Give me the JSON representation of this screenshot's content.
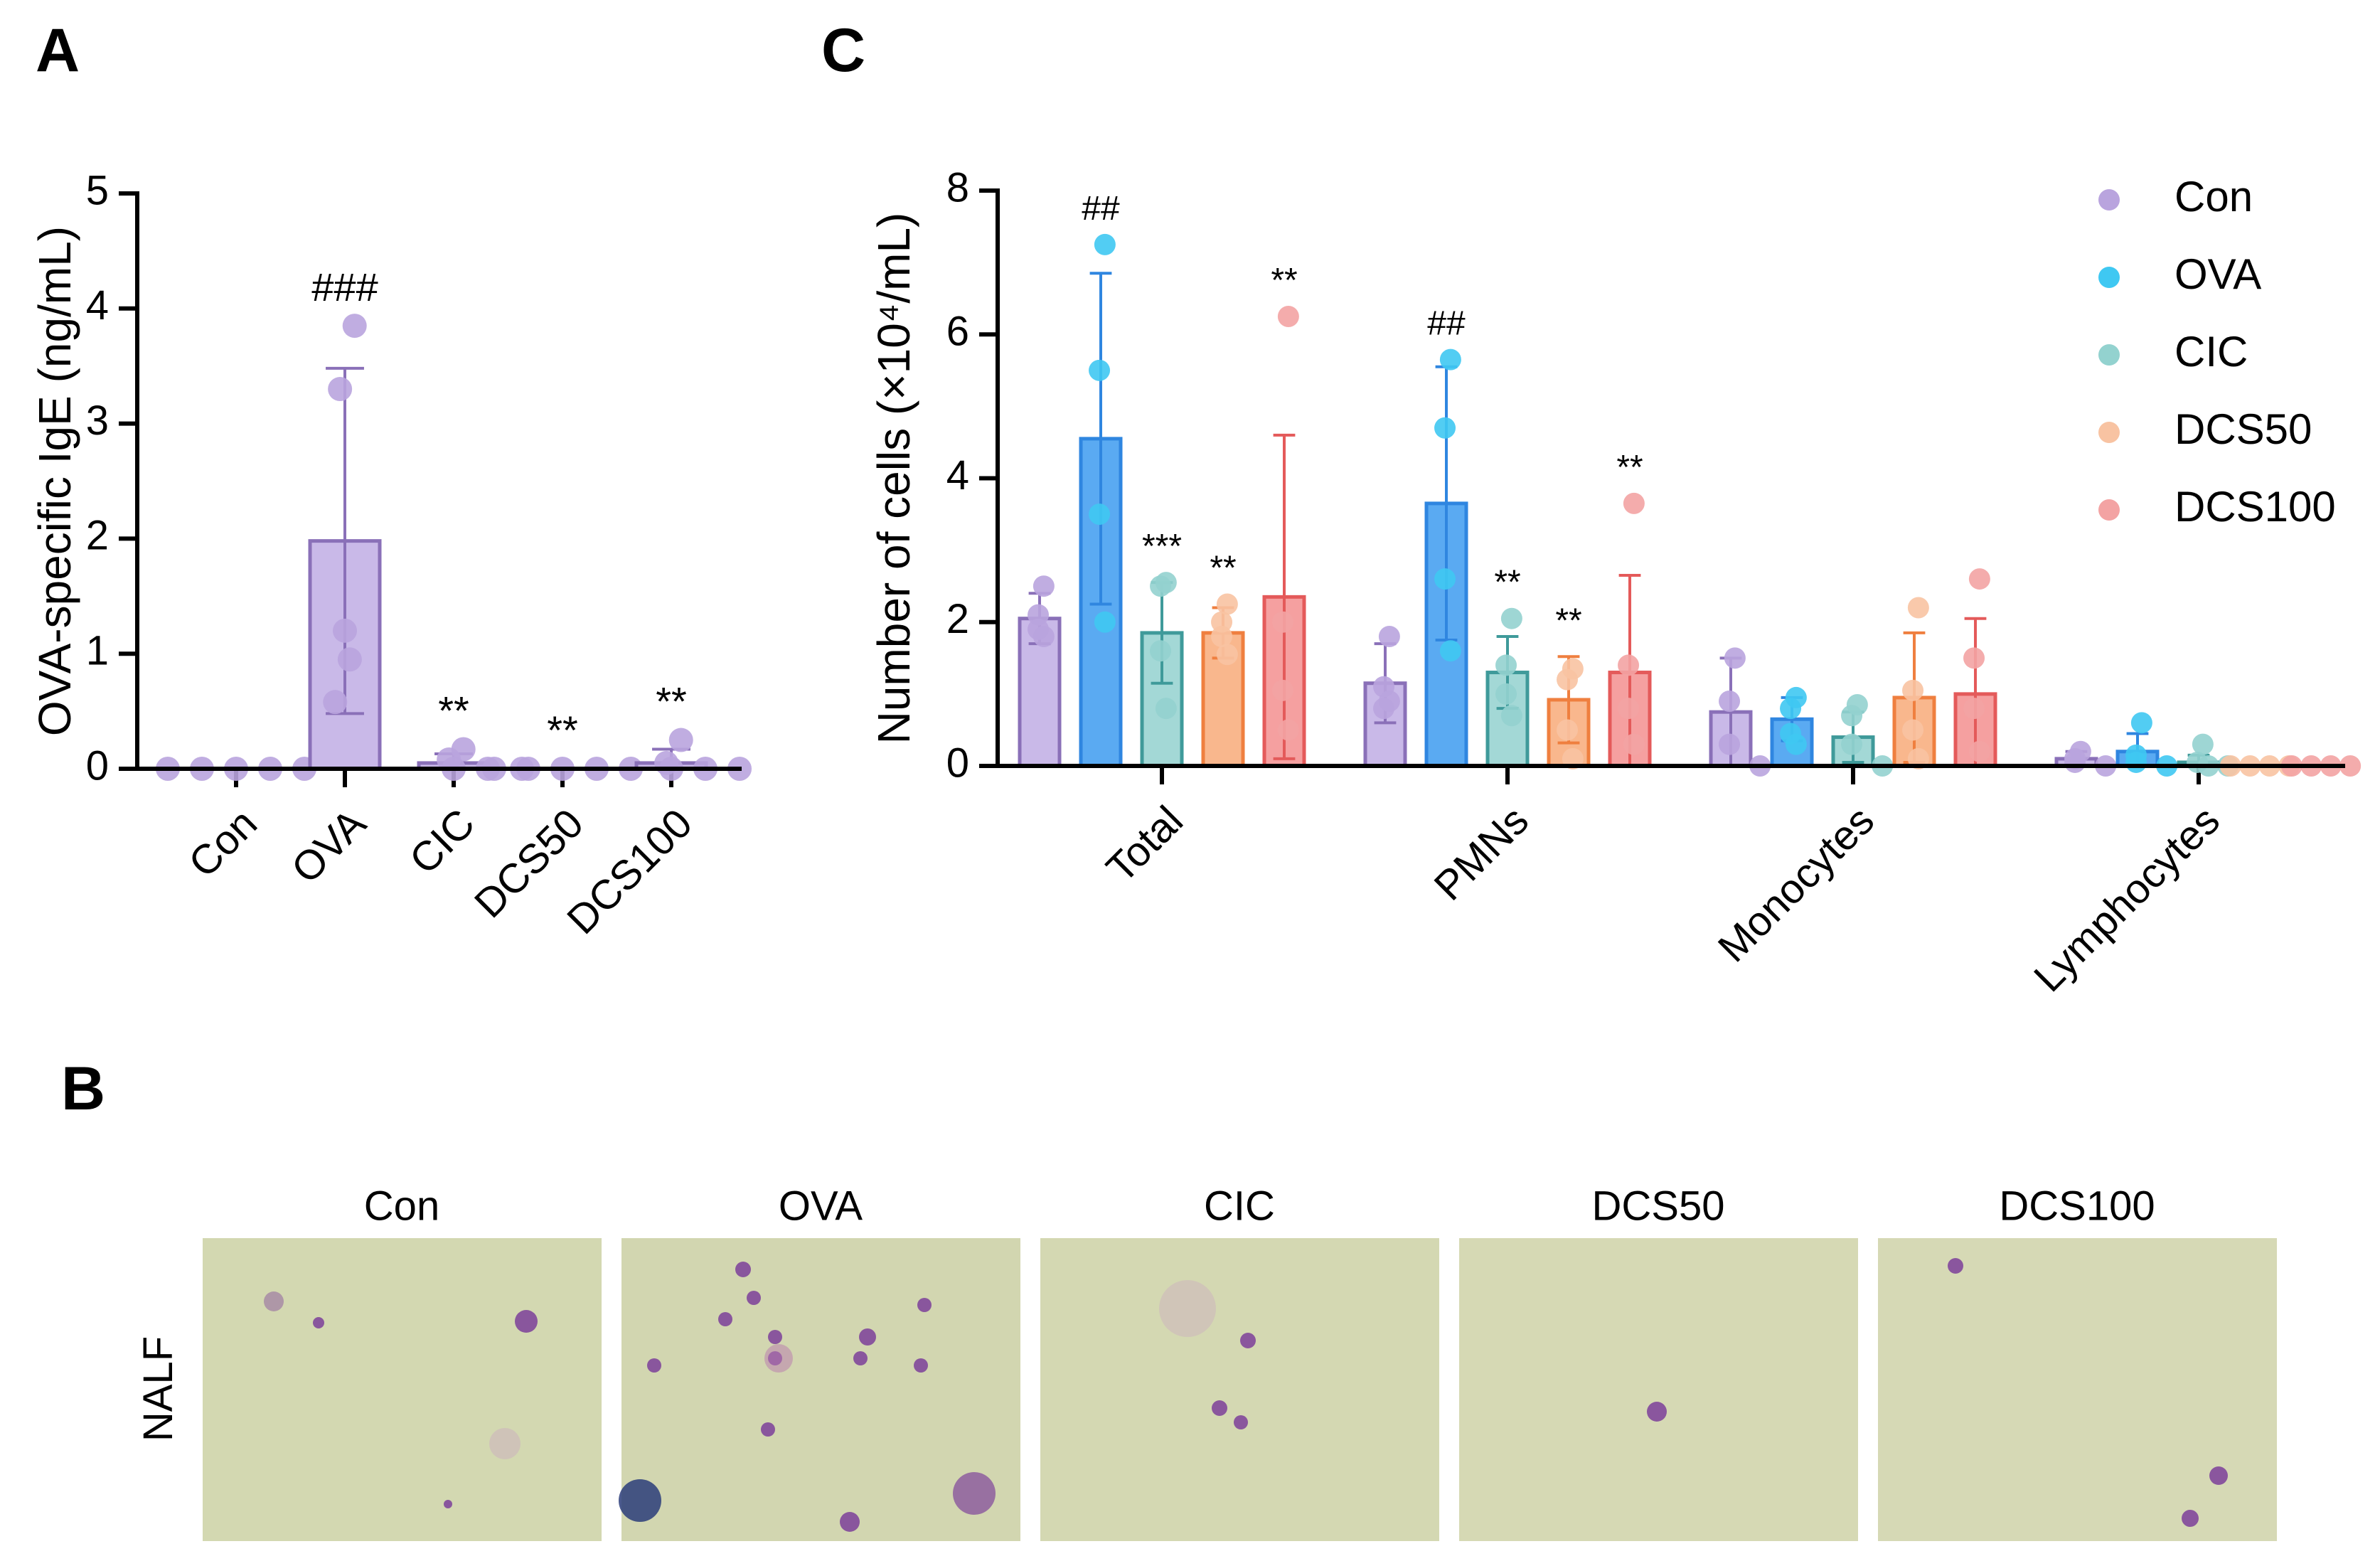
{
  "chart_data": [
    {
      "type": "bar",
      "panel_label": "A",
      "ylabel": "OVA-specific IgE (ng/mL)",
      "categories": [
        "Con",
        "OVA",
        "CIC",
        "DCS50",
        "DCS100"
      ],
      "values": [
        0,
        1.98,
        0.05,
        0,
        0.05
      ],
      "errors": [
        0,
        1.5,
        0.08,
        0,
        0.12
      ],
      "points": [
        [
          0,
          0,
          0,
          0,
          0
        ],
        [
          3.85,
          3.3,
          1.2,
          0.95,
          0.58
        ],
        [
          0.17,
          0.08,
          0,
          0,
          0
        ],
        [
          0,
          0,
          0,
          0,
          0
        ],
        [
          0.25,
          0.05,
          0,
          0,
          0
        ]
      ],
      "annotations": [
        null,
        "###",
        "**",
        "**",
        "**"
      ],
      "color": "#c9b9e8",
      "edge_color": "#8a70b8",
      "point_color": "#b9a4de",
      "ylim": [
        0,
        5
      ],
      "yticks": [
        0,
        1,
        2,
        3,
        4,
        5
      ]
    },
    {
      "type": "grouped_bar",
      "panel_label": "C",
      "ylabel": "Number of cells (×10⁴/mL)",
      "categories": [
        "Total",
        "PMNs",
        "Monocytes",
        "Lymphocytes"
      ],
      "legend": "upper right",
      "series": [
        {
          "name": "Con",
          "color": "#c9b9e8",
          "edge_color": "#8a70b8",
          "point_color": "#b9a4de",
          "values": [
            2.05,
            1.15,
            0.75,
            0.1
          ],
          "errors": [
            0.35,
            0.55,
            0.75,
            0.1
          ],
          "points": [
            [
              2.5,
              2.1,
              1.9,
              1.8
            ],
            [
              1.8,
              1.1,
              0.8,
              0.9
            ],
            [
              1.5,
              0.9,
              0.3,
              0
            ],
            [
              0.2,
              0.1,
              0.05,
              0
            ]
          ],
          "annotations": [
            null,
            null,
            null,
            null
          ]
        },
        {
          "name": "OVA",
          "color": "#5aaaf2",
          "edge_color": "#2f86e0",
          "point_color": "#3fc8f2",
          "values": [
            4.55,
            3.65,
            0.65,
            0.2
          ],
          "errors": [
            2.3,
            1.9,
            0.3,
            0.25
          ],
          "points": [
            [
              7.25,
              5.5,
              3.5,
              2.0
            ],
            [
              5.65,
              4.7,
              2.6,
              1.6
            ],
            [
              0.95,
              0.8,
              0.45,
              0.3
            ],
            [
              0.6,
              0.15,
              0.05,
              0
            ]
          ],
          "annotations": [
            "##",
            "##",
            null,
            null
          ]
        },
        {
          "name": "CIC",
          "color": "#a3d8d6",
          "edge_color": "#3f9a9a",
          "point_color": "#93d2cf",
          "values": [
            1.85,
            1.3,
            0.4,
            0.05
          ],
          "errors": [
            0.7,
            0.5,
            0.35,
            0.1
          ],
          "points": [
            [
              2.55,
              2.5,
              1.6,
              0.8
            ],
            [
              2.05,
              1.4,
              1.0,
              0.7
            ],
            [
              0.85,
              0.7,
              0.3,
              0
            ],
            [
              0.3,
              0.05,
              0,
              0
            ]
          ],
          "annotations": [
            "***",
            "**",
            null,
            null
          ]
        },
        {
          "name": "DCS50",
          "color": "#f9b78d",
          "edge_color": "#ef7f3f",
          "point_color": "#f8c3a2",
          "values": [
            1.85,
            0.92,
            0.95,
            0
          ],
          "errors": [
            0.35,
            0.6,
            0.9,
            0
          ],
          "points": [
            [
              2.25,
              2.0,
              1.8,
              1.55
            ],
            [
              1.35,
              1.2,
              0.5,
              0.1
            ],
            [
              2.2,
              1.05,
              0.5,
              0.1
            ],
            [
              0,
              0,
              0,
              0
            ]
          ],
          "annotations": [
            "**",
            "**",
            null,
            null
          ]
        },
        {
          "name": "DCS100",
          "color": "#f5a0a0",
          "edge_color": "#e45a5a",
          "point_color": "#f3a3a3",
          "values": [
            2.35,
            1.3,
            1.0,
            0
          ],
          "errors": [
            2.25,
            1.35,
            1.05,
            0
          ],
          "points": [
            [
              6.25,
              2.0,
              1.05,
              0.5
            ],
            [
              3.65,
              1.4,
              0.8,
              0.3
            ],
            [
              2.6,
              1.5,
              0.8,
              0.2
            ],
            [
              0,
              0,
              0,
              0
            ]
          ],
          "annotations": [
            "**",
            "**",
            null,
            null
          ]
        }
      ],
      "ylim": [
        0,
        8
      ],
      "yticks": [
        0,
        2,
        4,
        6,
        8
      ]
    }
  ],
  "panel_b": {
    "panel_label": "B",
    "row_label": "NALF",
    "columns": [
      "Con",
      "OVA",
      "CIC",
      "DCS50",
      "DCS100"
    ]
  }
}
